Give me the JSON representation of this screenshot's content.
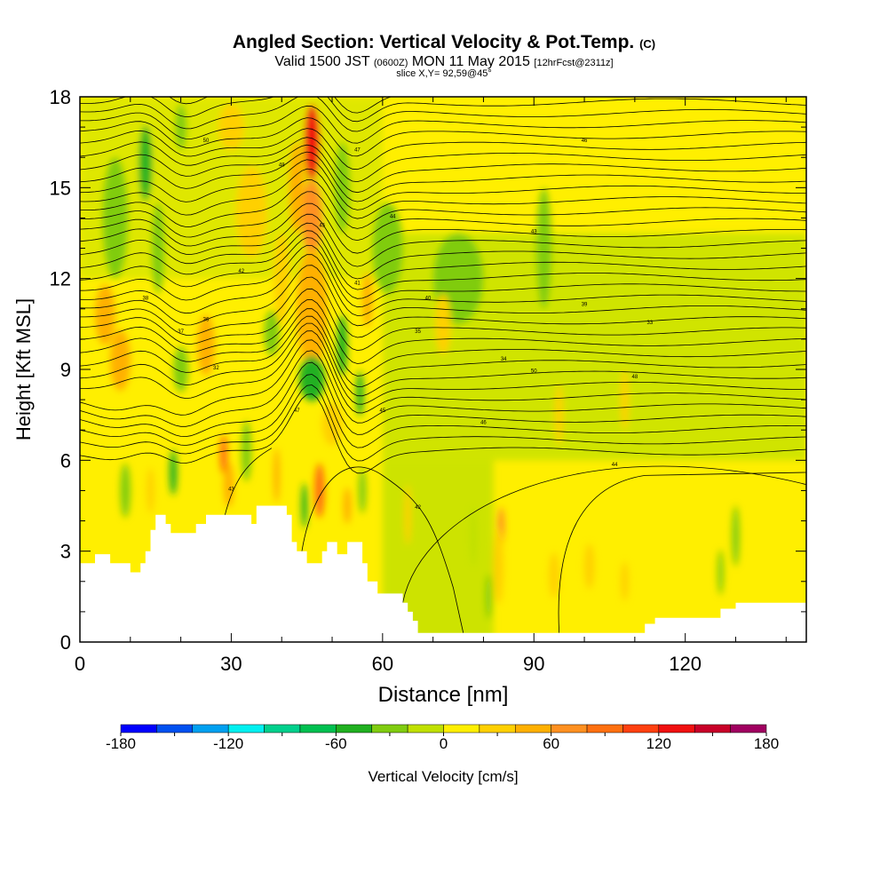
{
  "header": {
    "title": "Angled Section: Vertical Velocity & Pot.Temp.",
    "title_unit": "(C)",
    "valid_prefix": "Valid 1500 JST",
    "valid_utc": "(0600Z)",
    "valid_date": "MON 11 May 2015",
    "forecast": "[12hrFcst@2311z]",
    "slice": "slice X,Y= 92,59@45°"
  },
  "chart_data": {
    "type": "heatmap",
    "xlabel": "Distance [nm]",
    "ylabel": "Height [Kft MSL]",
    "xlim": [
      0,
      144
    ],
    "ylim": [
      0,
      18
    ],
    "xticks": [
      0,
      30,
      60,
      90,
      120
    ],
    "yticks": [
      0,
      3,
      6,
      9,
      12,
      15,
      18
    ],
    "colorbar": {
      "label": "Vertical Velocity [cm/s]",
      "range": [
        -180,
        180
      ],
      "step": 20,
      "tick_labels": [
        "-180",
        "-120",
        "-60",
        "0",
        "60",
        "120",
        "180"
      ],
      "colors": [
        "#0000ff",
        "#0050f0",
        "#00a0f0",
        "#00f0f0",
        "#00d08c",
        "#00c050",
        "#20b020",
        "#80cc10",
        "#c0e000",
        "#ffef00",
        "#ffd000",
        "#ffb000",
        "#ff9020",
        "#ff7010",
        "#ff4010",
        "#f01010",
        "#c80028",
        "#a00060"
      ]
    },
    "terrain_kft": [
      [
        0,
        2.6
      ],
      [
        3,
        2.6
      ],
      [
        3,
        2.9
      ],
      [
        6,
        2.9
      ],
      [
        6,
        2.6
      ],
      [
        10,
        2.6
      ],
      [
        10,
        2.3
      ],
      [
        12,
        2.3
      ],
      [
        12,
        2.6
      ],
      [
        13,
        2.6
      ],
      [
        13,
        3.0
      ],
      [
        14,
        3.0
      ],
      [
        14,
        3.7
      ],
      [
        15,
        3.7
      ],
      [
        15,
        4.2
      ],
      [
        17,
        4.2
      ],
      [
        17,
        3.9
      ],
      [
        18,
        3.9
      ],
      [
        18,
        3.6
      ],
      [
        23,
        3.6
      ],
      [
        23,
        3.9
      ],
      [
        25,
        3.9
      ],
      [
        25,
        4.2
      ],
      [
        34,
        4.2
      ],
      [
        34,
        3.9
      ],
      [
        35,
        3.9
      ],
      [
        35,
        4.5
      ],
      [
        41,
        4.5
      ],
      [
        41,
        4.2
      ],
      [
        42,
        4.2
      ],
      [
        42,
        3.3
      ],
      [
        43,
        3.3
      ],
      [
        43,
        3.0
      ],
      [
        45,
        3.0
      ],
      [
        45,
        2.6
      ],
      [
        48,
        2.6
      ],
      [
        48,
        3.0
      ],
      [
        49,
        3.0
      ],
      [
        49,
        3.3
      ],
      [
        51,
        3.3
      ],
      [
        51,
        2.9
      ],
      [
        53,
        2.9
      ],
      [
        53,
        3.3
      ],
      [
        56,
        3.3
      ],
      [
        56,
        2.6
      ],
      [
        57,
        2.6
      ],
      [
        57,
        2.0
      ],
      [
        59,
        2.0
      ],
      [
        59,
        1.6
      ],
      [
        64,
        1.6
      ],
      [
        64,
        1.3
      ],
      [
        65,
        1.3
      ],
      [
        65,
        1.0
      ],
      [
        66,
        1.0
      ],
      [
        66,
        0.7
      ],
      [
        67,
        0.7
      ],
      [
        67,
        0.3
      ],
      [
        112,
        0.3
      ],
      [
        112,
        0.6
      ],
      [
        114,
        0.6
      ],
      [
        114,
        0.8
      ],
      [
        127,
        0.8
      ],
      [
        127,
        1.1
      ],
      [
        130,
        1.1
      ],
      [
        130,
        1.3
      ],
      [
        144,
        1.3
      ]
    ],
    "velocity_features": [
      {
        "x": 46,
        "y": 16.5,
        "w": 3,
        "h": 2.5,
        "v": 120
      },
      {
        "x": 46,
        "y": 14,
        "w": 4,
        "h": 2.5,
        "v": 60
      },
      {
        "x": 46,
        "y": 11,
        "w": 6,
        "h": 4,
        "v": 40
      },
      {
        "x": 43,
        "y": 15,
        "w": 3,
        "h": 3,
        "v": 40
      },
      {
        "x": 52,
        "y": 15,
        "w": 3,
        "h": 3,
        "v": -40
      },
      {
        "x": 57,
        "y": 11.3,
        "w": 2,
        "h": 1.8,
        "v": 40
      },
      {
        "x": 34,
        "y": 14.2,
        "w": 6,
        "h": 3,
        "v": 30
      },
      {
        "x": 30,
        "y": 17,
        "w": 5,
        "h": 1.5,
        "v": 25
      },
      {
        "x": 40,
        "y": 12,
        "w": 3,
        "h": 3,
        "v": 25
      },
      {
        "x": 61,
        "y": 13,
        "w": 6,
        "h": 3,
        "v": -30
      },
      {
        "x": 75,
        "y": 12,
        "w": 10,
        "h": 3,
        "v": -25
      },
      {
        "x": 92,
        "y": 13,
        "w": 3,
        "h": 4,
        "v": -25
      },
      {
        "x": 13,
        "y": 15.8,
        "w": 2.5,
        "h": 2.5,
        "v": -60
      },
      {
        "x": 15.5,
        "y": 13,
        "w": 2.5,
        "h": 3,
        "v": -40
      },
      {
        "x": 20,
        "y": 17,
        "w": 2.2,
        "h": 1.5,
        "v": -40
      },
      {
        "x": 7,
        "y": 14,
        "w": 5,
        "h": 4,
        "v": -25
      },
      {
        "x": 5,
        "y": 10.8,
        "w": 4,
        "h": 2,
        "v": 40
      },
      {
        "x": 8,
        "y": 9.3,
        "w": 4,
        "h": 2,
        "v": 50
      },
      {
        "x": 25,
        "y": 9.8,
        "w": 3.5,
        "h": 2,
        "v": 50
      },
      {
        "x": 20,
        "y": 9.0,
        "w": 3,
        "h": 1.5,
        "v": -30
      },
      {
        "x": 38,
        "y": 10.2,
        "w": 3,
        "h": 1.5,
        "v": -40
      },
      {
        "x": 46,
        "y": 8.7,
        "w": 5,
        "h": 1.5,
        "v": -60
      },
      {
        "x": 52,
        "y": 9.8,
        "w": 2,
        "h": 2,
        "v": -50
      },
      {
        "x": 55.5,
        "y": 8.2,
        "w": 1.5,
        "h": 1.5,
        "v": -50
      },
      {
        "x": 50,
        "y": 7.2,
        "w": 4,
        "h": 1.4,
        "v": 30
      },
      {
        "x": 18.5,
        "y": 5.6,
        "w": 1.5,
        "h": 1.5,
        "v": -60
      },
      {
        "x": 9,
        "y": 5.0,
        "w": 2,
        "h": 1.8,
        "v": -30
      },
      {
        "x": 14,
        "y": 5.0,
        "w": 1.5,
        "h": 1.5,
        "v": 30
      },
      {
        "x": 28.5,
        "y": 6.2,
        "w": 1.5,
        "h": 1.3,
        "v": 80
      },
      {
        "x": 29.5,
        "y": 5.2,
        "w": 2,
        "h": 1.5,
        "v": 40
      },
      {
        "x": 33,
        "y": 6.3,
        "w": 2,
        "h": 2,
        "v": -30
      },
      {
        "x": 39,
        "y": 5.5,
        "w": 1.2,
        "h": 1.8,
        "v": 50
      },
      {
        "x": 44.5,
        "y": 4.5,
        "w": 1.2,
        "h": 1.5,
        "v": -60
      },
      {
        "x": 47.5,
        "y": 5.0,
        "w": 2,
        "h": 1.8,
        "v": 80
      },
      {
        "x": 53,
        "y": 4.5,
        "w": 1.5,
        "h": 1.2,
        "v": 40
      },
      {
        "x": 56,
        "y": 5.0,
        "w": 1.5,
        "h": 1.5,
        "v": -30
      },
      {
        "x": 83.5,
        "y": 3.8,
        "w": 1.3,
        "h": 1.3,
        "v": 60
      },
      {
        "x": 83,
        "y": 2.5,
        "w": 2,
        "h": 2.5,
        "v": 20
      },
      {
        "x": 81,
        "y": 1.5,
        "w": 1.2,
        "h": 1.5,
        "v": -40
      },
      {
        "x": 78,
        "y": 3.5,
        "w": 1.5,
        "h": 2,
        "v": -20
      },
      {
        "x": 94,
        "y": 2.2,
        "w": 2,
        "h": 1.5,
        "v": 30
      },
      {
        "x": 101,
        "y": 2.5,
        "w": 2,
        "h": 1.5,
        "v": 30
      },
      {
        "x": 108,
        "y": 2.0,
        "w": 1.5,
        "h": 1.3,
        "v": 30
      },
      {
        "x": 130,
        "y": 3.5,
        "w": 1.5,
        "h": 2,
        "v": -30
      },
      {
        "x": 127,
        "y": 2.3,
        "w": 1.2,
        "h": 1.5,
        "v": -30
      },
      {
        "x": 65,
        "y": 4.2,
        "w": 1.2,
        "h": 2,
        "v": 25
      },
      {
        "x": 95,
        "y": 7.5,
        "w": 1.5,
        "h": 2,
        "v": 30
      },
      {
        "x": 108,
        "y": 8.0,
        "w": 1.5,
        "h": 2,
        "v": 25
      },
      {
        "x": 72,
        "y": 10.5,
        "w": 3,
        "h": 2,
        "v": 20
      }
    ],
    "theta_labels": [
      "50",
      "48",
      "47",
      "46",
      "45",
      "44",
      "43",
      "42",
      "41",
      "40",
      "39",
      "38",
      "37",
      "36",
      "35",
      "34",
      "33",
      "32"
    ]
  }
}
